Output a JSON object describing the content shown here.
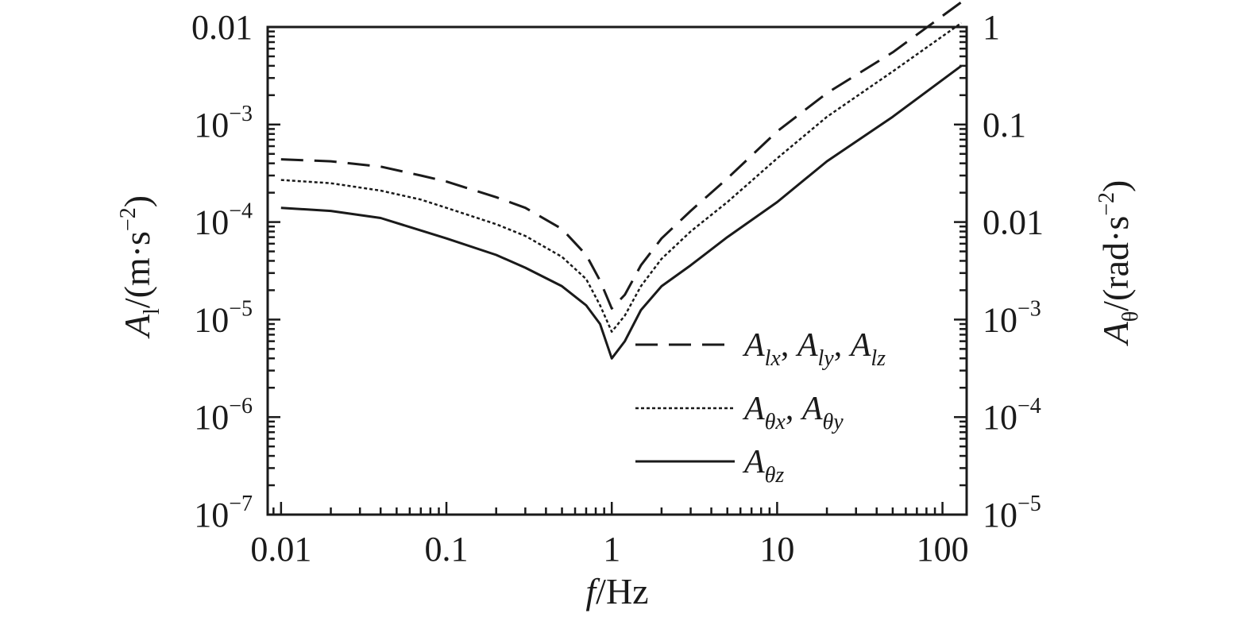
{
  "chart_data": {
    "type": "line",
    "x_scale": "log",
    "y_scale": "log",
    "xlim": [
      0.0083,
      140
    ],
    "ylim_left": [
      1e-07,
      0.01
    ],
    "ylim_right": [
      1e-05,
      1
    ],
    "grid": false,
    "legend_position": "bottom-right",
    "xlabel": {
      "italic": "f",
      "rest": "/Hz"
    },
    "ylabel_left": {
      "main": "A",
      "sub": "l",
      "rest": "/(m·s",
      "sup": "−2",
      "close": ")"
    },
    "ylabel_right": {
      "main": "A",
      "sub": "θ",
      "rest": "/(rad·s",
      "sup": "−2",
      "close": ")"
    },
    "x_ticks": [
      {
        "value": 0.01,
        "label": "0.01"
      },
      {
        "value": 0.1,
        "label": "0.1"
      },
      {
        "value": 1,
        "label": "1"
      },
      {
        "value": 10,
        "label": "10"
      },
      {
        "value": 100,
        "label": "100"
      }
    ],
    "y_ticks_left": [
      {
        "value": 0.01,
        "base": "0.01",
        "exp": ""
      },
      {
        "value": 0.001,
        "base": "10",
        "exp": "−3"
      },
      {
        "value": 0.0001,
        "base": "10",
        "exp": "−4"
      },
      {
        "value": 1e-05,
        "base": "10",
        "exp": "−5"
      },
      {
        "value": 1e-06,
        "base": "10",
        "exp": "−6"
      },
      {
        "value": 1e-07,
        "base": "10",
        "exp": "−7"
      }
    ],
    "y_ticks_right": [
      {
        "value": 1,
        "base": "1",
        "exp": ""
      },
      {
        "value": 0.1,
        "base": "0.1",
        "exp": ""
      },
      {
        "value": 0.01,
        "base": "0.01",
        "exp": ""
      },
      {
        "value": 0.001,
        "base": "10",
        "exp": "−3"
      },
      {
        "value": 0.0001,
        "base": "10",
        "exp": "−4"
      },
      {
        "value": 1e-05,
        "base": "10",
        "exp": "−5"
      }
    ],
    "series": [
      {
        "legend": [
          {
            "main": "A",
            "sub": "lx",
            "sep": ", "
          },
          {
            "main": "A",
            "sub": "ly",
            "sep": ", "
          },
          {
            "main": "A",
            "sub": "lz",
            "sep": ""
          }
        ],
        "style": "dashed",
        "x": [
          0.01,
          0.02,
          0.04,
          0.07,
          0.1,
          0.2,
          0.3,
          0.5,
          0.7,
          0.85,
          1.0,
          1.2,
          1.5,
          2,
          3,
          5,
          10,
          20,
          50,
          130
        ],
        "y": [
          0.00044,
          0.00042,
          0.00037,
          0.0003,
          0.00026,
          0.00018,
          0.00014,
          8.5e-05,
          4.6e-05,
          2.5e-05,
          1.3e-05,
          1.8e-05,
          3.6e-05,
          6.8e-05,
          0.00013,
          0.00028,
          0.00085,
          0.0021,
          0.0055,
          0.018
        ]
      },
      {
        "legend": [
          {
            "main": "A",
            "sub": "θx",
            "sep": ", "
          },
          {
            "main": "A",
            "sub": "θy",
            "sep": ""
          }
        ],
        "style": "dotted",
        "x": [
          0.01,
          0.02,
          0.04,
          0.07,
          0.1,
          0.2,
          0.3,
          0.5,
          0.7,
          0.85,
          1.0,
          1.2,
          1.5,
          2,
          3,
          5,
          10,
          20,
          50,
          130
        ],
        "y": [
          0.00027,
          0.00025,
          0.00021,
          0.00017,
          0.00014,
          9.5e-05,
          7.2e-05,
          4.4e-05,
          2.6e-05,
          1.4e-05,
          7.5e-06,
          1.1e-05,
          2.2e-05,
          4.2e-05,
          8e-05,
          0.00016,
          0.00045,
          0.0012,
          0.0035,
          0.011
        ]
      },
      {
        "legend": [
          {
            "main": "A",
            "sub": "θz",
            "sep": ""
          }
        ],
        "style": "solid",
        "x": [
          0.01,
          0.02,
          0.04,
          0.07,
          0.1,
          0.2,
          0.3,
          0.5,
          0.7,
          0.85,
          1.0,
          1.2,
          1.5,
          2,
          3,
          5,
          10,
          20,
          50,
          130
        ],
        "y": [
          0.00014,
          0.00013,
          0.00011,
          8.2e-05,
          6.8e-05,
          4.6e-05,
          3.4e-05,
          2.2e-05,
          1.4e-05,
          9e-06,
          4e-06,
          6e-06,
          1.25e-05,
          2.2e-05,
          3.6e-05,
          7e-05,
          0.00016,
          0.00042,
          0.0012,
          0.004
        ]
      }
    ]
  }
}
